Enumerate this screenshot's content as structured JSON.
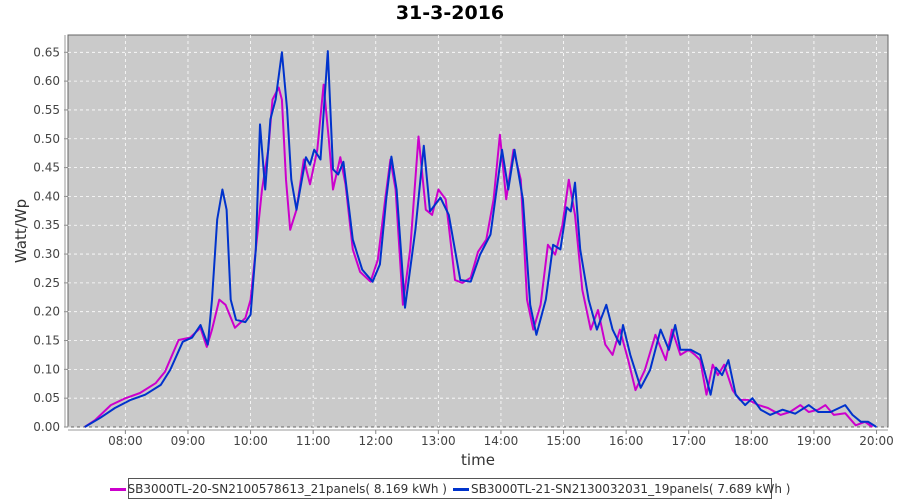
{
  "chart_data": {
    "type": "line",
    "title": "31-3-2016",
    "xlabel": "time",
    "ylabel": "Watt/Wp",
    "xlim": [
      "07:05",
      "20:11"
    ],
    "ylim": [
      0,
      0.68
    ],
    "x_ticks": [
      "08:00",
      "09:00",
      "10:00",
      "11:00",
      "12:00",
      "13:00",
      "14:00",
      "15:00",
      "16:00",
      "17:00",
      "18:00",
      "19:00",
      "20:00"
    ],
    "y_ticks": [
      "0.00",
      "0.05",
      "0.10",
      "0.15",
      "0.20",
      "0.25",
      "0.30",
      "0.35",
      "0.40",
      "0.45",
      "0.50",
      "0.55",
      "0.60",
      "0.65"
    ],
    "grid": true,
    "legend_placement": "bottom",
    "background_color": "#cacaca",
    "series": [
      {
        "name": "SB3000TL-20-SN2100578613_21panels( 8.169 kWh )",
        "color": "#cc00cc",
        "points": [
          [
            "07:21",
            0.0
          ],
          [
            "07:31",
            0.012
          ],
          [
            "07:46",
            0.038
          ],
          [
            "08:00",
            0.05
          ],
          [
            "08:14",
            0.059
          ],
          [
            "08:29",
            0.076
          ],
          [
            "08:38",
            0.096
          ],
          [
            "08:51",
            0.151
          ],
          [
            "09:02",
            0.155
          ],
          [
            "09:12",
            0.172
          ],
          [
            "09:18",
            0.139
          ],
          [
            "09:23",
            0.169
          ],
          [
            "09:30",
            0.221
          ],
          [
            "09:36",
            0.212
          ],
          [
            "09:45",
            0.172
          ],
          [
            "09:55",
            0.189
          ],
          [
            "10:00",
            0.221
          ],
          [
            "10:05",
            0.308
          ],
          [
            "10:11",
            0.412
          ],
          [
            "10:17",
            0.481
          ],
          [
            "10:21",
            0.568
          ],
          [
            "10:27",
            0.589
          ],
          [
            "10:30",
            0.568
          ],
          [
            "10:34",
            0.429
          ],
          [
            "10:38",
            0.342
          ],
          [
            "10:44",
            0.377
          ],
          [
            "10:51",
            0.464
          ],
          [
            "10:57",
            0.421
          ],
          [
            "11:04",
            0.481
          ],
          [
            "11:10",
            0.594
          ],
          [
            "11:15",
            0.499
          ],
          [
            "11:19",
            0.412
          ],
          [
            "11:26",
            0.468
          ],
          [
            "11:31",
            0.421
          ],
          [
            "11:38",
            0.308
          ],
          [
            "11:45",
            0.269
          ],
          [
            "11:55",
            0.252
          ],
          [
            "12:02",
            0.29
          ],
          [
            "12:09",
            0.395
          ],
          [
            "12:14",
            0.464
          ],
          [
            "12:19",
            0.412
          ],
          [
            "12:26",
            0.212
          ],
          [
            "12:33",
            0.308
          ],
          [
            "12:41",
            0.504
          ],
          [
            "12:48",
            0.377
          ],
          [
            "12:54",
            0.368
          ],
          [
            "13:00",
            0.412
          ],
          [
            "13:07",
            0.395
          ],
          [
            "13:16",
            0.255
          ],
          [
            "13:23",
            0.25
          ],
          [
            "13:31",
            0.259
          ],
          [
            "13:38",
            0.304
          ],
          [
            "13:46",
            0.325
          ],
          [
            "13:53",
            0.395
          ],
          [
            "13:59",
            0.507
          ],
          [
            "14:05",
            0.395
          ],
          [
            "14:12",
            0.481
          ],
          [
            "14:19",
            0.429
          ],
          [
            "14:25",
            0.221
          ],
          [
            "14:31",
            0.169
          ],
          [
            "14:38",
            0.212
          ],
          [
            "14:45",
            0.316
          ],
          [
            "14:52",
            0.299
          ],
          [
            "14:59",
            0.351
          ],
          [
            "15:05",
            0.429
          ],
          [
            "15:11",
            0.368
          ],
          [
            "15:18",
            0.238
          ],
          [
            "15:26",
            0.169
          ],
          [
            "15:33",
            0.203
          ],
          [
            "15:40",
            0.143
          ],
          [
            "15:47",
            0.125
          ],
          [
            "15:54",
            0.169
          ],
          [
            "16:02",
            0.116
          ],
          [
            "16:09",
            0.064
          ],
          [
            "16:18",
            0.099
          ],
          [
            "16:28",
            0.16
          ],
          [
            "16:38",
            0.116
          ],
          [
            "16:44",
            0.169
          ],
          [
            "16:52",
            0.125
          ],
          [
            "17:00",
            0.134
          ],
          [
            "17:06",
            0.125
          ],
          [
            "17:11",
            0.116
          ],
          [
            "17:17",
            0.056
          ],
          [
            "17:23",
            0.108
          ],
          [
            "17:28",
            0.09
          ],
          [
            "17:34",
            0.108
          ],
          [
            "17:42",
            0.064
          ],
          [
            "17:49",
            0.047
          ],
          [
            "17:57",
            0.047
          ],
          [
            "18:07",
            0.038
          ],
          [
            "18:16",
            0.033
          ],
          [
            "18:28",
            0.021
          ],
          [
            "18:37",
            0.026
          ],
          [
            "18:47",
            0.038
          ],
          [
            "18:55",
            0.026
          ],
          [
            "19:04",
            0.03
          ],
          [
            "19:11",
            0.038
          ],
          [
            "19:19",
            0.021
          ],
          [
            "19:30",
            0.024
          ],
          [
            "19:40",
            0.003
          ],
          [
            "19:49",
            0.009
          ],
          [
            "19:56",
            0.0
          ]
        ]
      },
      {
        "name": "SB3000TL-21-SN2130032031_19panels( 7.689 kWh )",
        "color": "#0033cc",
        "points": [
          [
            "07:21",
            0.0
          ],
          [
            "07:36",
            0.016
          ],
          [
            "07:50",
            0.033
          ],
          [
            "08:05",
            0.047
          ],
          [
            "08:19",
            0.056
          ],
          [
            "08:34",
            0.073
          ],
          [
            "08:43",
            0.099
          ],
          [
            "08:55",
            0.148
          ],
          [
            "09:04",
            0.155
          ],
          [
            "09:12",
            0.177
          ],
          [
            "09:19",
            0.143
          ],
          [
            "09:23",
            0.221
          ],
          [
            "09:28",
            0.36
          ],
          [
            "09:33",
            0.412
          ],
          [
            "09:37",
            0.377
          ],
          [
            "09:41",
            0.221
          ],
          [
            "09:46",
            0.186
          ],
          [
            "09:55",
            0.182
          ],
          [
            "10:00",
            0.195
          ],
          [
            "10:05",
            0.308
          ],
          [
            "10:09",
            0.525
          ],
          [
            "10:14",
            0.412
          ],
          [
            "10:19",
            0.534
          ],
          [
            "10:24",
            0.568
          ],
          [
            "10:30",
            0.65
          ],
          [
            "10:35",
            0.551
          ],
          [
            "10:39",
            0.429
          ],
          [
            "10:44",
            0.377
          ],
          [
            "10:53",
            0.468
          ],
          [
            "10:57",
            0.455
          ],
          [
            "11:01",
            0.481
          ],
          [
            "11:07",
            0.464
          ],
          [
            "11:14",
            0.652
          ],
          [
            "11:19",
            0.447
          ],
          [
            "11:24",
            0.438
          ],
          [
            "11:29",
            0.46
          ],
          [
            "11:38",
            0.325
          ],
          [
            "11:47",
            0.273
          ],
          [
            "11:57",
            0.252
          ],
          [
            "12:04",
            0.282
          ],
          [
            "12:10",
            0.395
          ],
          [
            "12:15",
            0.469
          ],
          [
            "12:20",
            0.412
          ],
          [
            "12:28",
            0.207
          ],
          [
            "12:38",
            0.342
          ],
          [
            "12:46",
            0.488
          ],
          [
            "12:52",
            0.374
          ],
          [
            "13:02",
            0.398
          ],
          [
            "13:10",
            0.368
          ],
          [
            "13:21",
            0.255
          ],
          [
            "13:31",
            0.252
          ],
          [
            "13:40",
            0.299
          ],
          [
            "13:50",
            0.334
          ],
          [
            "14:01",
            0.481
          ],
          [
            "14:07",
            0.412
          ],
          [
            "14:13",
            0.481
          ],
          [
            "14:21",
            0.395
          ],
          [
            "14:28",
            0.212
          ],
          [
            "14:34",
            0.16
          ],
          [
            "14:43",
            0.221
          ],
          [
            "14:50",
            0.316
          ],
          [
            "14:57",
            0.308
          ],
          [
            "15:03",
            0.381
          ],
          [
            "15:07",
            0.374
          ],
          [
            "15:11",
            0.424
          ],
          [
            "15:16",
            0.308
          ],
          [
            "15:24",
            0.221
          ],
          [
            "15:32",
            0.169
          ],
          [
            "15:41",
            0.212
          ],
          [
            "15:47",
            0.169
          ],
          [
            "15:54",
            0.143
          ],
          [
            "15:57",
            0.177
          ],
          [
            "16:04",
            0.125
          ],
          [
            "16:14",
            0.068
          ],
          [
            "16:23",
            0.099
          ],
          [
            "16:33",
            0.169
          ],
          [
            "16:41",
            0.134
          ],
          [
            "16:47",
            0.177
          ],
          [
            "16:52",
            0.134
          ],
          [
            "17:02",
            0.134
          ],
          [
            "17:11",
            0.125
          ],
          [
            "17:21",
            0.056
          ],
          [
            "17:26",
            0.103
          ],
          [
            "17:32",
            0.09
          ],
          [
            "17:38",
            0.116
          ],
          [
            "17:45",
            0.056
          ],
          [
            "17:54",
            0.038
          ],
          [
            "18:01",
            0.05
          ],
          [
            "18:09",
            0.03
          ],
          [
            "18:18",
            0.021
          ],
          [
            "18:30",
            0.03
          ],
          [
            "18:42",
            0.023
          ],
          [
            "18:55",
            0.038
          ],
          [
            "19:04",
            0.026
          ],
          [
            "19:16",
            0.026
          ],
          [
            "19:30",
            0.038
          ],
          [
            "19:37",
            0.021
          ],
          [
            "19:45",
            0.009
          ],
          [
            "19:52",
            0.009
          ],
          [
            "20:00",
            0.0
          ]
        ]
      }
    ]
  }
}
